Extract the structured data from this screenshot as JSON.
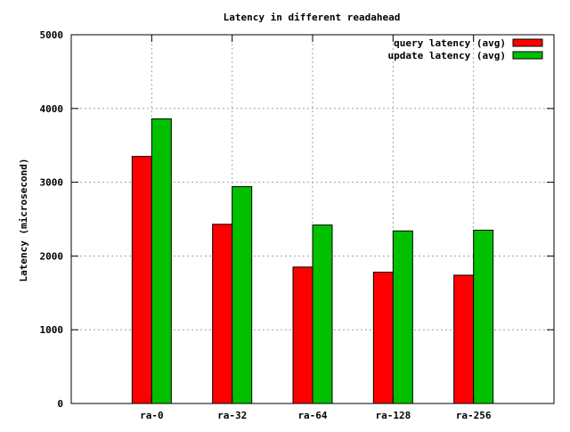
{
  "chart_data": {
    "type": "bar",
    "title": "Latency in different readahead",
    "xlabel": "",
    "ylabel": "Latency (microsecond)",
    "categories": [
      "ra-0",
      "ra-32",
      "ra-64",
      "ra-128",
      "ra-256"
    ],
    "series": [
      {
        "name": "query latency (avg)",
        "color": "#ff0000",
        "values": [
          3350,
          2430,
          1850,
          1780,
          1740
        ]
      },
      {
        "name": "update latency (avg)",
        "color": "#00c000",
        "values": [
          3860,
          2940,
          2420,
          2340,
          2350
        ]
      }
    ],
    "ylim": [
      0,
      5000
    ],
    "yticks": [
      0,
      1000,
      2000,
      3000,
      4000,
      5000
    ],
    "grid": true,
    "legend": "top-right"
  }
}
